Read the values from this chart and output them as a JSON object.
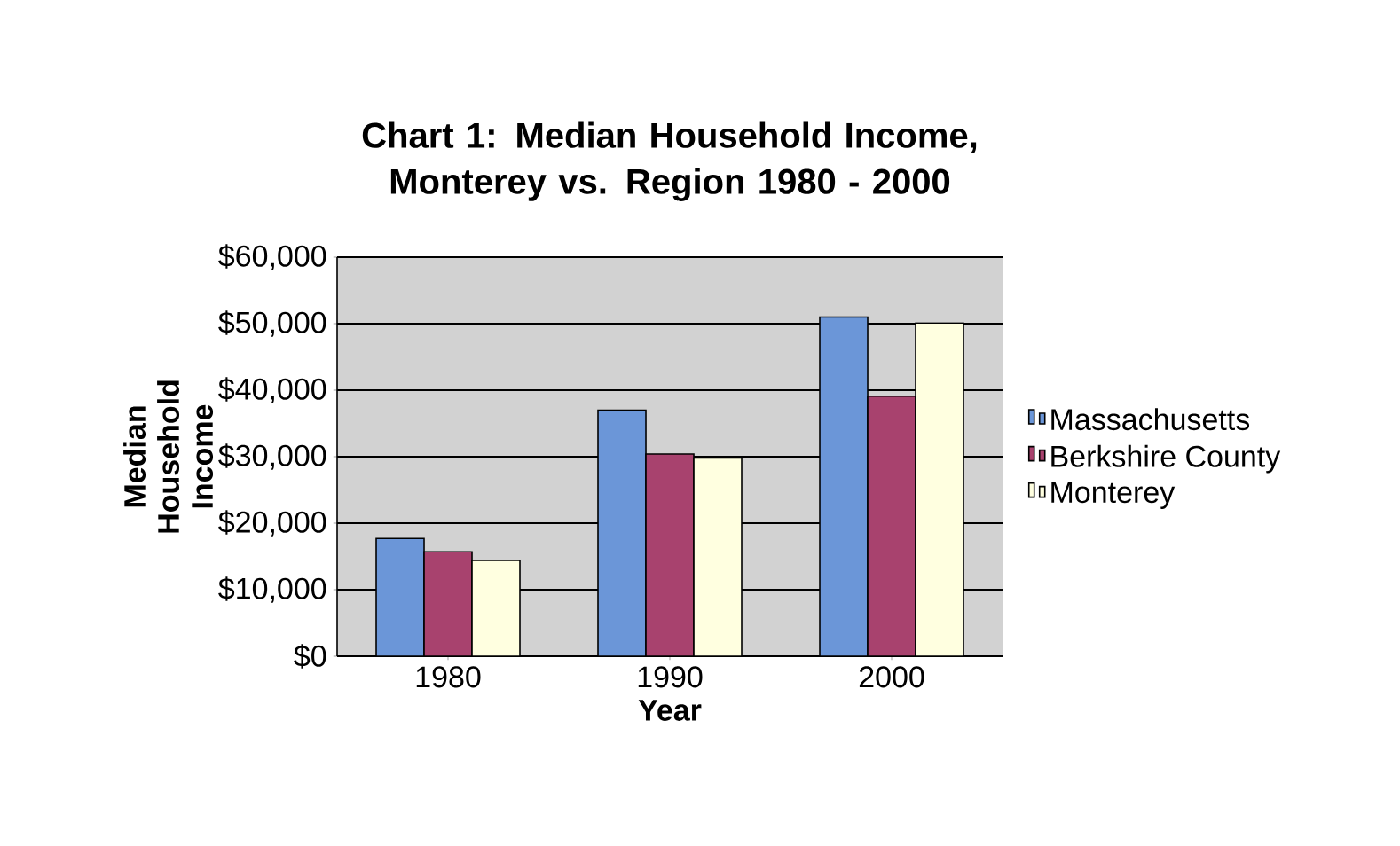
{
  "chart_data": {
    "type": "bar",
    "title": "Chart 1: Median Household Income, Monterey vs. Region 1980 - 2000",
    "xlabel": "Year",
    "ylabel": "Median Household Income",
    "categories": [
      "1980",
      "1990",
      "2000"
    ],
    "series": [
      {
        "name": "Massachusetts",
        "color": "#6b96d8",
        "values": [
          17700,
          37000,
          51000
        ]
      },
      {
        "name": "Berkshire County",
        "color": "#a8426e",
        "values": [
          15700,
          30400,
          39100
        ]
      },
      {
        "name": "Monterey",
        "color": "#ffffe0",
        "values": [
          14400,
          29800,
          50100
        ]
      }
    ],
    "ylim": [
      0,
      60000
    ],
    "yticks": [
      {
        "value": 0,
        "label": "$0"
      },
      {
        "value": 10000,
        "label": "$10,000"
      },
      {
        "value": 20000,
        "label": "$20,000"
      },
      {
        "value": 30000,
        "label": "$30,000"
      },
      {
        "value": 40000,
        "label": "$40,000"
      },
      {
        "value": 50000,
        "label": "$50,000"
      },
      {
        "value": 60000,
        "label": "$60,000"
      }
    ],
    "grid": "y",
    "legend": "right"
  }
}
